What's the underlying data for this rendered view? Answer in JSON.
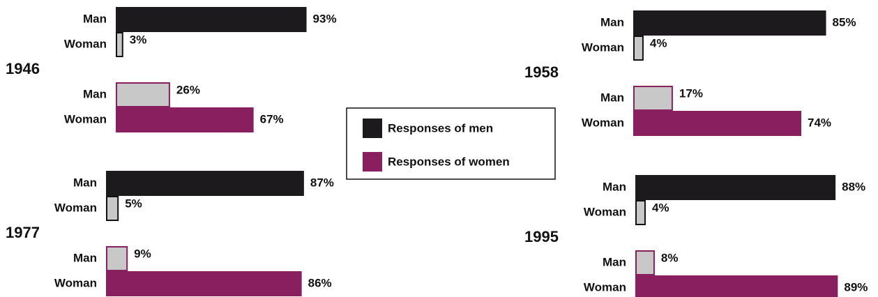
{
  "chart_data": [
    {
      "type": "bar",
      "title": "1946",
      "categories": [
        "Man",
        "Woman"
      ],
      "secondary_color": "#c8c8c8",
      "series": [
        {
          "name": "Responses of men",
          "color": "#1c1a1c",
          "values": [
            93,
            3
          ],
          "value_labels": [
            "93%",
            "3%"
          ]
        },
        {
          "name": "Responses of women",
          "color": "#8a1f5f",
          "values": [
            26,
            67
          ],
          "value_labels": [
            "26%",
            "67%"
          ]
        }
      ]
    },
    {
      "type": "bar",
      "title": "1958",
      "categories": [
        "Man",
        "Woman"
      ],
      "secondary_color": "#c8c8c8",
      "series": [
        {
          "name": "Responses of men",
          "color": "#1c1a1c",
          "values": [
            85,
            4
          ],
          "value_labels": [
            "85%",
            "4%"
          ]
        },
        {
          "name": "Responses of women",
          "color": "#8a1f5f",
          "values": [
            17,
            74
          ],
          "value_labels": [
            "17%",
            "74%"
          ]
        }
      ]
    },
    {
      "type": "bar",
      "title": "1977",
      "categories": [
        "Man",
        "Woman"
      ],
      "secondary_color": "#c8c8c8",
      "series": [
        {
          "name": "Responses of men",
          "color": "#1c1a1c",
          "values": [
            87,
            5
          ],
          "value_labels": [
            "87%",
            "5%"
          ]
        },
        {
          "name": "Responses of women",
          "color": "#8a1f5f",
          "values": [
            9,
            86
          ],
          "value_labels": [
            "9%",
            "86%"
          ]
        }
      ]
    },
    {
      "type": "bar",
      "title": "1995",
      "categories": [
        "Man",
        "Woman"
      ],
      "secondary_color": "#c8c8c8",
      "series": [
        {
          "name": "Responses of men",
          "color": "#1c1a1c",
          "values": [
            88,
            4
          ],
          "value_labels": [
            "88%",
            "4%"
          ]
        },
        {
          "name": "Responses of women",
          "color": "#8a1f5f",
          "values": [
            8,
            89
          ],
          "value_labels": [
            "8%",
            "89%"
          ]
        }
      ]
    }
  ]
}
